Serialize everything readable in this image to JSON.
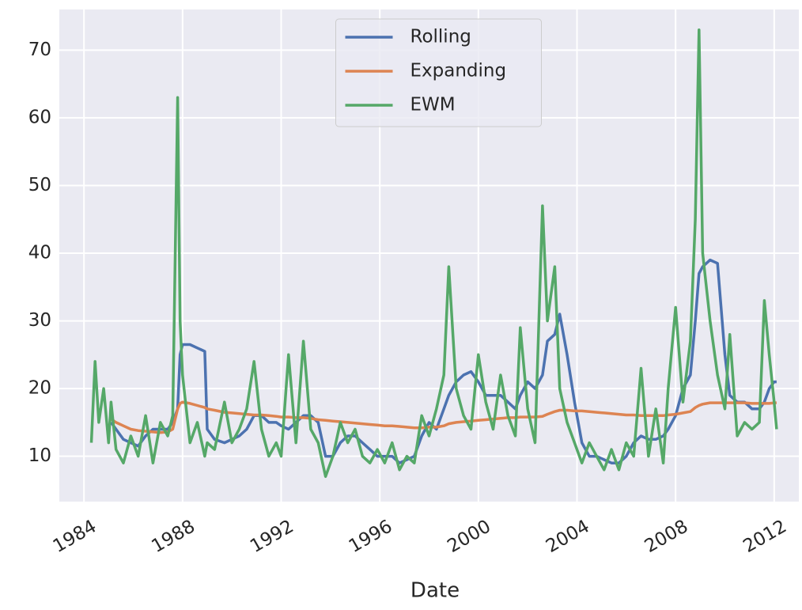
{
  "chart_data": {
    "type": "line",
    "xlabel": "Date",
    "x": [
      1984.3,
      1984.45,
      1984.6,
      1984.8,
      1985.0,
      1985.1,
      1985.3,
      1985.6,
      1985.9,
      1986.2,
      1986.5,
      1986.8,
      1987.1,
      1987.4,
      1987.6,
      1987.8,
      1987.9,
      1988.0,
      1988.3,
      1988.6,
      1988.9,
      1989.0,
      1989.3,
      1989.7,
      1990.0,
      1990.3,
      1990.6,
      1990.9,
      1991.2,
      1991.5,
      1991.8,
      1992.0,
      1992.3,
      1992.6,
      1992.9,
      1993.2,
      1993.5,
      1993.8,
      1994.1,
      1994.4,
      1994.7,
      1995.0,
      1995.3,
      1995.6,
      1995.9,
      1996.2,
      1996.5,
      1996.8,
      1997.1,
      1997.4,
      1997.7,
      1998.0,
      1998.3,
      1998.6,
      1998.8,
      1999.1,
      1999.4,
      1999.7,
      2000.0,
      2000.3,
      2000.6,
      2000.9,
      2001.2,
      2001.5,
      2001.7,
      2002.0,
      2002.3,
      2002.6,
      2002.8,
      2003.1,
      2003.3,
      2003.6,
      2003.9,
      2004.2,
      2004.5,
      2004.8,
      2005.1,
      2005.4,
      2005.7,
      2006.0,
      2006.3,
      2006.6,
      2006.9,
      2007.2,
      2007.5,
      2007.7,
      2008.0,
      2008.3,
      2008.6,
      2008.8,
      2008.95,
      2009.1,
      2009.4,
      2009.7,
      2010.0,
      2010.2,
      2010.5,
      2010.8,
      2011.1,
      2011.4,
      2011.6,
      2011.8,
      2012.0,
      2012.1
    ],
    "series": [
      {
        "name": "Rolling",
        "color": "#4c72b0",
        "values": [
          null,
          null,
          null,
          null,
          null,
          15,
          14,
          12.5,
          12,
          11.5,
          13,
          14,
          14,
          14,
          15,
          17,
          25,
          26.5,
          26.5,
          26,
          25.5,
          14,
          12.5,
          12,
          12.5,
          13,
          14,
          16,
          16,
          15,
          15,
          14.5,
          14,
          15,
          16,
          16,
          15,
          10,
          10,
          12,
          13,
          13,
          12,
          11,
          10,
          10,
          10,
          9,
          9.5,
          10,
          13,
          15,
          14,
          17,
          19,
          21,
          22,
          22.5,
          21,
          19,
          19,
          19,
          18,
          17,
          19,
          21,
          20,
          22,
          27,
          28,
          31,
          25,
          18,
          12,
          10,
          10,
          9.5,
          9,
          9,
          10,
          12,
          13,
          12.5,
          12.5,
          13,
          14,
          16,
          20,
          22,
          30,
          37,
          38,
          39,
          38.5,
          25,
          19,
          18,
          18,
          17,
          17,
          18,
          20,
          21,
          21
        ]
      },
      {
        "name": "Expanding",
        "color": "#dd8452",
        "values": [
          null,
          null,
          null,
          null,
          null,
          15.5,
          15,
          14.5,
          14,
          13.8,
          13.7,
          13.6,
          13.5,
          13.6,
          14,
          17,
          17.8,
          18,
          17.8,
          17.5,
          17.2,
          17,
          16.8,
          16.5,
          16.4,
          16.3,
          16.2,
          16.1,
          16.1,
          16,
          15.9,
          15.8,
          15.8,
          15.7,
          15.7,
          15.6,
          15.4,
          15.3,
          15.2,
          15.1,
          15,
          14.9,
          14.8,
          14.7,
          14.6,
          14.5,
          14.5,
          14.4,
          14.3,
          14.2,
          14.2,
          14.3,
          14.3,
          14.5,
          14.8,
          15,
          15.1,
          15.2,
          15.3,
          15.4,
          15.5,
          15.6,
          15.7,
          15.7,
          15.8,
          15.8,
          15.8,
          15.9,
          16.2,
          16.6,
          16.8,
          16.8,
          16.7,
          16.7,
          16.6,
          16.5,
          16.4,
          16.3,
          16.2,
          16.1,
          16.1,
          16,
          16,
          16,
          16,
          16.1,
          16.2,
          16.4,
          16.6,
          17.2,
          17.5,
          17.7,
          17.9,
          17.9,
          17.9,
          17.9,
          17.9,
          17.9,
          17.8,
          17.8,
          17.8,
          17.8,
          17.9,
          17.9
        ]
      },
      {
        "name": "EWM",
        "color": "#55a868",
        "values": [
          12,
          24,
          15,
          20,
          12,
          18,
          11,
          9,
          13,
          10,
          16,
          9,
          15,
          13,
          16,
          63,
          30,
          22,
          12,
          15,
          10,
          12,
          11,
          18,
          12,
          14,
          17,
          24,
          14,
          10,
          12,
          10,
          25,
          12,
          27,
          14,
          12,
          7,
          10,
          15,
          12,
          14,
          10,
          9,
          11,
          9,
          12,
          8,
          10,
          9,
          16,
          13,
          17,
          22,
          38,
          20,
          16,
          14,
          25,
          18,
          14,
          22,
          16,
          13,
          29,
          17,
          12,
          47,
          30,
          38,
          20,
          15,
          12,
          9,
          12,
          10,
          8,
          11,
          8,
          12,
          10,
          23,
          10,
          17,
          9,
          20,
          32,
          18,
          27,
          45,
          73,
          40,
          30,
          22,
          17,
          28,
          13,
          15,
          14,
          15,
          33,
          25,
          18,
          14
        ]
      }
    ],
    "xlim": [
      1983,
      2013
    ],
    "xticks": [
      1984,
      1988,
      1992,
      1996,
      2000,
      2004,
      2008,
      2012
    ],
    "ylim": [
      3.3,
      76
    ],
    "yticks": [
      10,
      20,
      30,
      40,
      50,
      60,
      70
    ],
    "grid": true,
    "legend": "upper center"
  }
}
